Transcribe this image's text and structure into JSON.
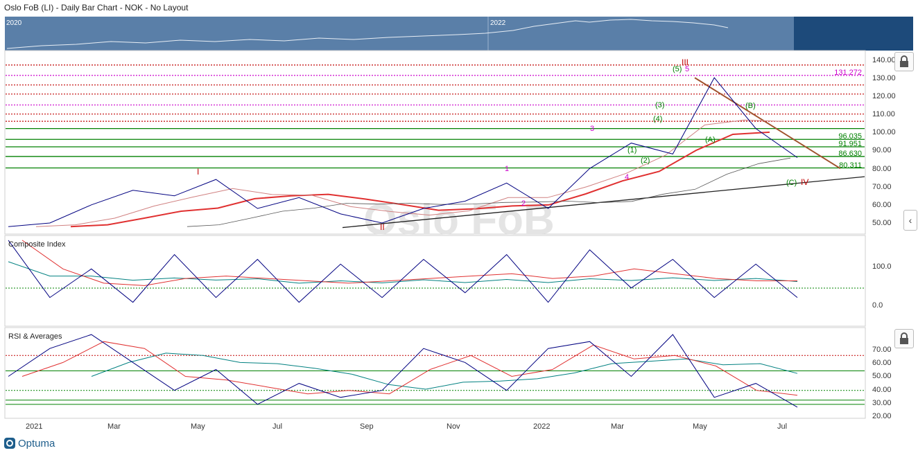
{
  "header": {
    "title": "Oslo FoB (LI) - Daily Bar Chart - NOK - No Layout"
  },
  "navigator": {
    "year_labels": [
      "2020",
      "2022"
    ]
  },
  "watermark": "Oslo FoB",
  "panels": [
    {
      "title": ""
    },
    {
      "title": "Composite Index"
    },
    {
      "title": "RSI & Averages"
    }
  ],
  "x_axis": {
    "labels": [
      "2021",
      "Mar",
      "May",
      "Jul",
      "Sep",
      "Nov",
      "2022",
      "Mar",
      "May",
      "Jul"
    ]
  },
  "price_axis": [
    "140.00",
    "130.00",
    "120.00",
    "110.00",
    "100.00",
    "90.00",
    "80.00",
    "70.00",
    "60.00",
    "50.00"
  ],
  "level_labels": [
    "131.272",
    "96.035",
    "91.951",
    "86.630",
    "80.311"
  ],
  "wave_labels": [
    "I",
    "II",
    "III",
    "IV",
    "(C)",
    "(B)",
    "(A)",
    "(5)",
    "(4)",
    "(3)",
    "(2)",
    "(1)",
    "5",
    "4",
    "3",
    "2",
    "1"
  ],
  "composite_axis": [
    "100.0",
    "0.0"
  ],
  "rsi_axis": [
    "70.00",
    "60.00",
    "50.00",
    "40.00",
    "30.00",
    "20.00"
  ],
  "brand": {
    "name": "Optuma"
  },
  "colors": {
    "accent": "#1e5e8c",
    "navigator": "#5a7fa8",
    "price": "#000080",
    "ma_red": "#e03030",
    "level_green": "#008000",
    "level_red": "#c00000",
    "level_magenta": "#cc00cc"
  },
  "chart_data": [
    {
      "type": "line",
      "title": "Oslo FoB (LI) - Daily Bar Chart - NOK - No Layout",
      "x": [
        "2020-12",
        "2021-01",
        "2021-02",
        "2021-03",
        "2021-04",
        "2021-05",
        "2021-06",
        "2021-07",
        "2021-08",
        "2021-09",
        "2021-10",
        "2021-11",
        "2021-12",
        "2022-01",
        "2022-02",
        "2022-03",
        "2022-04",
        "2022-05",
        "2022-06",
        "2022-07"
      ],
      "series": [
        {
          "values": [
            48,
            50,
            60,
            68,
            65,
            74,
            58,
            64,
            55,
            50,
            58,
            62,
            72,
            58,
            80,
            94,
            88,
            130,
            102,
            86
          ]
        }
      ],
      "ylim": [
        45,
        145
      ],
      "horizontal_levels": [
        131.272,
        96.035,
        91.951,
        86.63,
        80.311
      ],
      "grid": false
    },
    {
      "type": "line",
      "title": "Composite Index",
      "ylim": [
        -40,
        150
      ],
      "series": [
        {
          "values": [
            140,
            20,
            80,
            10,
            110,
            20,
            100,
            10,
            90,
            20,
            100,
            30,
            110,
            10,
            120,
            40,
            100,
            20,
            90,
            20
          ]
        }
      ]
    },
    {
      "type": "line",
      "title": "RSI & Averages",
      "ylim": [
        20,
        85
      ],
      "horizontal_levels": [
        65,
        54,
        40,
        33,
        30
      ],
      "series": [
        {
          "values": [
            50,
            70,
            80,
            60,
            40,
            55,
            30,
            45,
            35,
            40,
            70,
            60,
            40,
            70,
            75,
            50,
            80,
            35,
            45,
            28
          ]
        }
      ]
    }
  ]
}
